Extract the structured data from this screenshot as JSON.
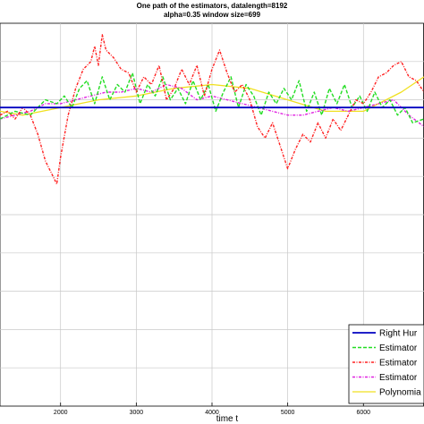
{
  "chart_data": {
    "type": "line",
    "title": "One path of the estimators, datalength=8192",
    "subtitle": "alpha=0.35  window size=699",
    "xlabel": "time t",
    "ylabel": "",
    "xlim": [
      1200,
      6800
    ],
    "ylim": [
      0,
      10
    ],
    "x_ticks": [
      2000,
      3000,
      4000,
      5000,
      6000
    ],
    "y_gridlines": [
      1,
      2,
      3,
      4,
      5,
      6,
      7,
      8,
      9
    ],
    "grid": true,
    "legend_position": "bottom-right",
    "series": [
      {
        "name": "Right Hur",
        "color": "#0000c0",
        "style": "solid",
        "x": [
          1200,
          6800
        ],
        "y": [
          7.8,
          7.8
        ]
      },
      {
        "name": "Estimator",
        "color": "#22dd22",
        "style": "dashed",
        "x": [
          1200,
          1400,
          1600,
          1800,
          1950,
          2050,
          2150,
          2250,
          2350,
          2450,
          2550,
          2650,
          2750,
          2850,
          2950,
          3050,
          3150,
          3250,
          3350,
          3450,
          3550,
          3650,
          3750,
          3850,
          3950,
          4050,
          4150,
          4250,
          4350,
          4450,
          4550,
          4650,
          4750,
          4850,
          4950,
          5050,
          5150,
          5250,
          5350,
          5450,
          5550,
          5650,
          5750,
          5850,
          5950,
          6050,
          6150,
          6250,
          6350,
          6450,
          6550,
          6650,
          6800
        ],
        "y": [
          7.5,
          7.7,
          7.6,
          8.0,
          7.9,
          8.1,
          7.8,
          8.3,
          8.5,
          7.9,
          8.6,
          8.0,
          8.4,
          8.2,
          8.7,
          7.9,
          8.4,
          8.1,
          8.6,
          8.0,
          8.3,
          7.9,
          8.5,
          8.0,
          8.4,
          7.7,
          8.2,
          8.6,
          7.8,
          8.4,
          8.1,
          7.6,
          8.2,
          7.9,
          8.3,
          8.0,
          8.5,
          7.7,
          8.2,
          7.6,
          8.3,
          7.9,
          8.4,
          7.8,
          8.1,
          7.7,
          8.2,
          7.8,
          8.0,
          7.6,
          7.8,
          7.4,
          7.5
        ]
      },
      {
        "name": "Estimator",
        "color": "#ff2020",
        "style": "dash-dot",
        "x": [
          1200,
          1300,
          1400,
          1500,
          1600,
          1700,
          1800,
          1900,
          1950,
          2000,
          2100,
          2200,
          2300,
          2400,
          2450,
          2500,
          2550,
          2600,
          2700,
          2800,
          2900,
          3000,
          3100,
          3200,
          3300,
          3400,
          3500,
          3600,
          3700,
          3800,
          3900,
          4000,
          4100,
          4200,
          4300,
          4400,
          4500,
          4600,
          4700,
          4800,
          4900,
          5000,
          5100,
          5200,
          5300,
          5400,
          5500,
          5600,
          5700,
          5800,
          5900,
          6000,
          6100,
          6200,
          6300,
          6400,
          6500,
          6600,
          6700,
          6800
        ],
        "y": [
          7.6,
          7.7,
          7.5,
          7.8,
          7.6,
          7.1,
          6.4,
          6.0,
          5.8,
          6.5,
          7.6,
          8.3,
          8.8,
          9.0,
          9.4,
          8.9,
          9.7,
          9.3,
          9.1,
          8.8,
          8.7,
          8.2,
          8.6,
          8.4,
          8.9,
          8.0,
          8.3,
          8.8,
          8.4,
          8.9,
          8.1,
          8.8,
          9.3,
          8.7,
          8.2,
          8.4,
          8.0,
          7.3,
          7.0,
          7.4,
          6.8,
          6.2,
          6.7,
          7.1,
          6.9,
          7.4,
          7.0,
          7.5,
          7.2,
          7.6,
          8.0,
          7.9,
          8.2,
          8.6,
          8.7,
          8.9,
          9.0,
          8.6,
          8.5,
          8.2
        ]
      },
      {
        "name": "Estimator",
        "color": "#e020e0",
        "style": "dash-dot",
        "x": [
          1200,
          1400,
          1600,
          1800,
          2000,
          2200,
          2400,
          2600,
          2800,
          3000,
          3200,
          3400,
          3600,
          3800,
          4000,
          4200,
          4400,
          4600,
          4800,
          5000,
          5200,
          5400,
          5600,
          5800,
          6000,
          6200,
          6400,
          6600,
          6800
        ],
        "y": [
          7.5,
          7.6,
          7.7,
          7.9,
          7.9,
          8.0,
          8.1,
          8.2,
          8.2,
          8.3,
          8.2,
          8.4,
          8.3,
          8.0,
          8.1,
          8.0,
          7.9,
          7.8,
          7.7,
          7.6,
          7.6,
          7.7,
          7.8,
          7.7,
          7.8,
          7.9,
          8.0,
          7.6,
          7.3
        ]
      },
      {
        "name": "Polynomia",
        "color": "#f0e020",
        "style": "solid",
        "x": [
          1200,
          1500,
          2000,
          2500,
          3000,
          3500,
          4000,
          4500,
          5000,
          5500,
          6000,
          6500,
          6800
        ],
        "y": [
          7.7,
          7.6,
          7.8,
          8.0,
          8.1,
          8.3,
          8.4,
          8.3,
          8.0,
          7.7,
          7.7,
          8.2,
          8.6
        ]
      }
    ]
  }
}
